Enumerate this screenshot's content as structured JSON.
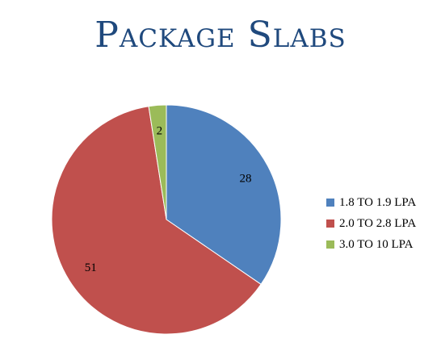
{
  "chart_data": {
    "type": "pie",
    "title": "Package Slabs",
    "categories": [
      "1.8 TO 1.9 LPA",
      "2.0 TO 2.8 LPA",
      "3.0 TO 10 LPA"
    ],
    "values": [
      28,
      51,
      2
    ],
    "colors": [
      "#4F81BD",
      "#C0504D",
      "#9BBB59"
    ],
    "data_labels": [
      "28",
      "51",
      "2"
    ],
    "legend_position": "right"
  }
}
